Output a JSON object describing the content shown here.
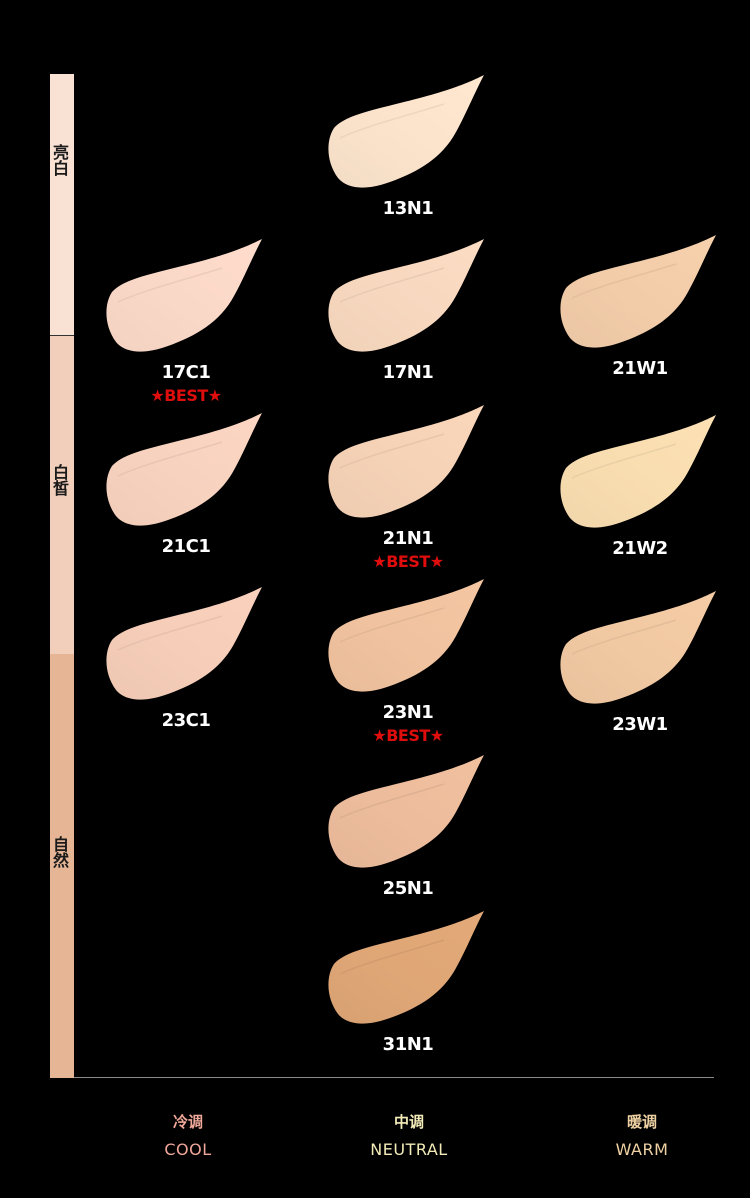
{
  "tone_scale": [
    {
      "label": "亮白",
      "color": "#f9e1d4"
    },
    {
      "label": "白皙",
      "color": "#f2cfbb"
    },
    {
      "label": "自然",
      "color": "#e6b596"
    }
  ],
  "columns": {
    "cool": {
      "zh": "冷调",
      "en": "COOL",
      "color": "#f0a89a"
    },
    "neutral": {
      "zh": "中调",
      "en": "NEUTRAL",
      "color": "#f3ecb8"
    },
    "warm": {
      "zh": "暖调",
      "en": "WARM",
      "color": "#efd2a3"
    }
  },
  "best_label": "★BEST★",
  "shades": [
    {
      "name": "13N1",
      "column": "neutral",
      "color": "#fbe3cb",
      "best": false
    },
    {
      "name": "17C1",
      "column": "cool",
      "color": "#fad8c8",
      "best": true
    },
    {
      "name": "17N1",
      "column": "neutral",
      "color": "#f7d8bf",
      "best": false
    },
    {
      "name": "21W1",
      "column": "warm",
      "color": "#f2cca9",
      "best": false
    },
    {
      "name": "21C1",
      "column": "cool",
      "color": "#f7d2bf",
      "best": false
    },
    {
      "name": "21N1",
      "column": "neutral",
      "color": "#f5d2b6",
      "best": true
    },
    {
      "name": "21W2",
      "column": "warm",
      "color": "#f8ddb0",
      "best": false
    },
    {
      "name": "23C1",
      "column": "cool",
      "color": "#f5cdb8",
      "best": false
    },
    {
      "name": "23N1",
      "column": "neutral",
      "color": "#f0c29f",
      "best": true
    },
    {
      "name": "23W1",
      "column": "warm",
      "color": "#f0c8a2",
      "best": false
    },
    {
      "name": "25N1",
      "column": "neutral",
      "color": "#ecbc9c",
      "best": false
    },
    {
      "name": "31N1",
      "column": "neutral",
      "color": "#dfa676",
      "best": false
    }
  ]
}
